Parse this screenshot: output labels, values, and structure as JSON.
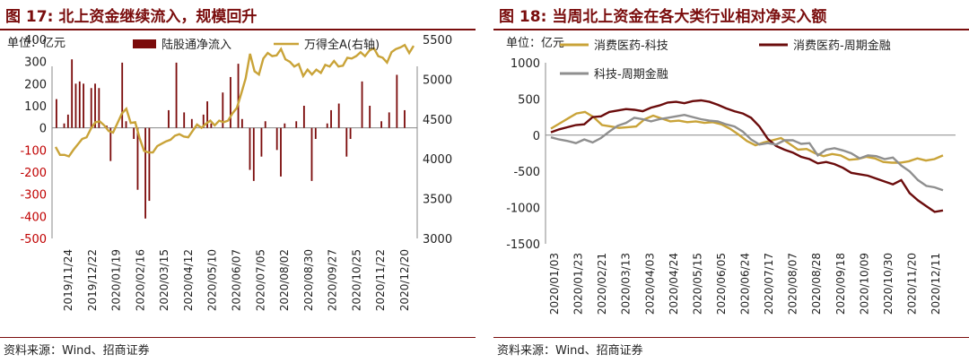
{
  "figures": [
    {
      "fig_label": "图 17:",
      "title": "北上资金继续流入，规模回升",
      "source": "资料来源：Wind、招商证券",
      "unit_label": "单位：亿元",
      "chart_data": {
        "type": "bar+line",
        "title": "北上资金继续流入，规模回升",
        "unit": "单位：亿元",
        "y_left": {
          "min": -500,
          "max": 400,
          "ticks": [
            -500,
            -400,
            -300,
            -200,
            -100,
            0,
            100,
            200,
            300,
            400
          ]
        },
        "y_right": {
          "label": "右轴",
          "min": 3000,
          "max": 5500,
          "ticks": [
            3000,
            3500,
            4000,
            4500,
            5000,
            5500
          ]
        },
        "x_tick_labels": [
          "2019/11/24",
          "2019/12/22",
          "2020/01/19",
          "2020/02/16",
          "2020/03/15",
          "2020/04/12",
          "2020/05/10",
          "2020/06/07",
          "2020/07/05",
          "2020/08/02",
          "2020/08/30",
          "2020/09/27",
          "2020/10/25",
          "2020/11/22",
          "2020/12/20"
        ],
        "series": [
          {
            "name": "陆股通净流入",
            "kind": "bar",
            "color": "#7b0b0b",
            "values": [
              130,
              0,
              20,
              60,
              310,
              200,
              210,
              200,
              0,
              180,
              200,
              180,
              0,
              10,
              -150,
              0,
              0,
              295,
              30,
              0,
              -50,
              -280,
              0,
              -410,
              -330,
              0,
              0,
              0,
              0,
              80,
              0,
              295,
              0,
              70,
              0,
              40,
              10,
              0,
              60,
              120,
              20,
              0,
              0,
              160,
              0,
              230,
              0,
              290,
              40,
              0,
              -190,
              -240,
              0,
              -130,
              30,
              0,
              0,
              -100,
              -220,
              20,
              0,
              0,
              30,
              0,
              100,
              0,
              -240,
              -50,
              0,
              0,
              20,
              80,
              0,
              110,
              0,
              -130,
              -50,
              0,
              0,
              210,
              0,
              100,
              0,
              0,
              30,
              0,
              70,
              0,
              240,
              0,
              80,
              0,
              0
            ],
            "x_range": "2019/11/24–2020/12/31"
          },
          {
            "name": "万得全A(右轴)",
            "kind": "line",
            "color": "#c9a338",
            "values": [
              4150,
              4050,
              4050,
              4030,
              4110,
              4180,
              4250,
              4270,
              4380,
              4460,
              4470,
              4420,
              4350,
              4330,
              4450,
              4570,
              4630,
              4450,
              4460,
              4260,
              4100,
              4080,
              4080,
              4160,
              4190,
              4220,
              4240,
              4290,
              4310,
              4280,
              4270,
              4350,
              4430,
              4390,
              4440,
              4480,
              4420,
              4480,
              4460,
              4480,
              4570,
              4640,
              4820,
              5010,
              5320,
              5100,
              5060,
              5260,
              5330,
              5290,
              5300,
              5380,
              5250,
              5220,
              5160,
              5190,
              5040,
              5120,
              5060,
              5120,
              5080,
              5180,
              5160,
              5230,
              5160,
              5170,
              5270,
              5260,
              5290,
              5340,
              5290,
              5360,
              5390,
              5290,
              5270,
              5210,
              5340,
              5380,
              5400,
              5430,
              5330,
              5420
            ]
          }
        ]
      }
    },
    {
      "fig_label": "图 18:",
      "title": "当周北上资金在各大类行业相对净买入额",
      "source": "资料来源：Wind、招商证券",
      "unit_label": "单位：亿元",
      "chart_data": {
        "type": "line",
        "title": "当周北上资金在各大类行业相对净买入额",
        "unit": "单位：亿元",
        "ylim": [
          -1500,
          1000
        ],
        "y_ticks": [
          -1500,
          -1000,
          -500,
          0,
          500,
          1000
        ],
        "x_tick_labels": [
          "2020/01/03",
          "2020/01/23",
          "2020/02/21",
          "2020/03/13",
          "2020/04/03",
          "2020/04/24",
          "2020/05/15",
          "2020/06/05",
          "2020/06/24",
          "2020/07/17",
          "2020/08/07",
          "2020/08/28",
          "2020/09/18",
          "2020/10/09",
          "2020/10/30",
          "2020/11/20",
          "2020/12/11"
        ],
        "series": [
          {
            "name": "消费医药-科技",
            "color": "#c9a338",
            "values": [
              90,
              160,
              230,
              300,
              320,
              250,
              140,
              120,
              100,
              110,
              120,
              220,
              270,
              230,
              190,
              200,
              180,
              190,
              170,
              180,
              150,
              90,
              10,
              -80,
              -140,
              -100,
              -70,
              -40,
              -120,
              -200,
              -190,
              -250,
              -290,
              -260,
              -280,
              -340,
              -330,
              -300,
              -320,
              -370,
              -380,
              -380,
              -360,
              -320,
              -350,
              -330,
              -280
            ]
          },
          {
            "name": "消费医药-周期金融",
            "color": "#6b0c0c",
            "values": [
              40,
              80,
              110,
              140,
              150,
              250,
              260,
              320,
              340,
              360,
              350,
              330,
              380,
              410,
              450,
              460,
              440,
              470,
              480,
              460,
              420,
              370,
              330,
              300,
              240,
              120,
              -50,
              -150,
              -200,
              -240,
              -300,
              -330,
              -390,
              -370,
              -400,
              -450,
              -520,
              -540,
              -560,
              -600,
              -640,
              -680,
              -620,
              -800,
              -900,
              -980,
              -1060,
              -1040
            ]
          },
          {
            "name": "科技-周期金融",
            "color": "#8f8f8f",
            "values": [
              -30,
              -60,
              -80,
              -110,
              -60,
              -100,
              -40,
              50,
              130,
              170,
              240,
              220,
              190,
              220,
              240,
              260,
              280,
              250,
              220,
              200,
              190,
              150,
              120,
              50,
              -60,
              -130,
              -110,
              -130,
              -70,
              -70,
              -120,
              -110,
              -280,
              -200,
              -180,
              -210,
              -250,
              -320,
              -280,
              -290,
              -330,
              -310,
              -420,
              -500,
              -620,
              -700,
              -720,
              -760
            ]
          }
        ]
      }
    }
  ]
}
